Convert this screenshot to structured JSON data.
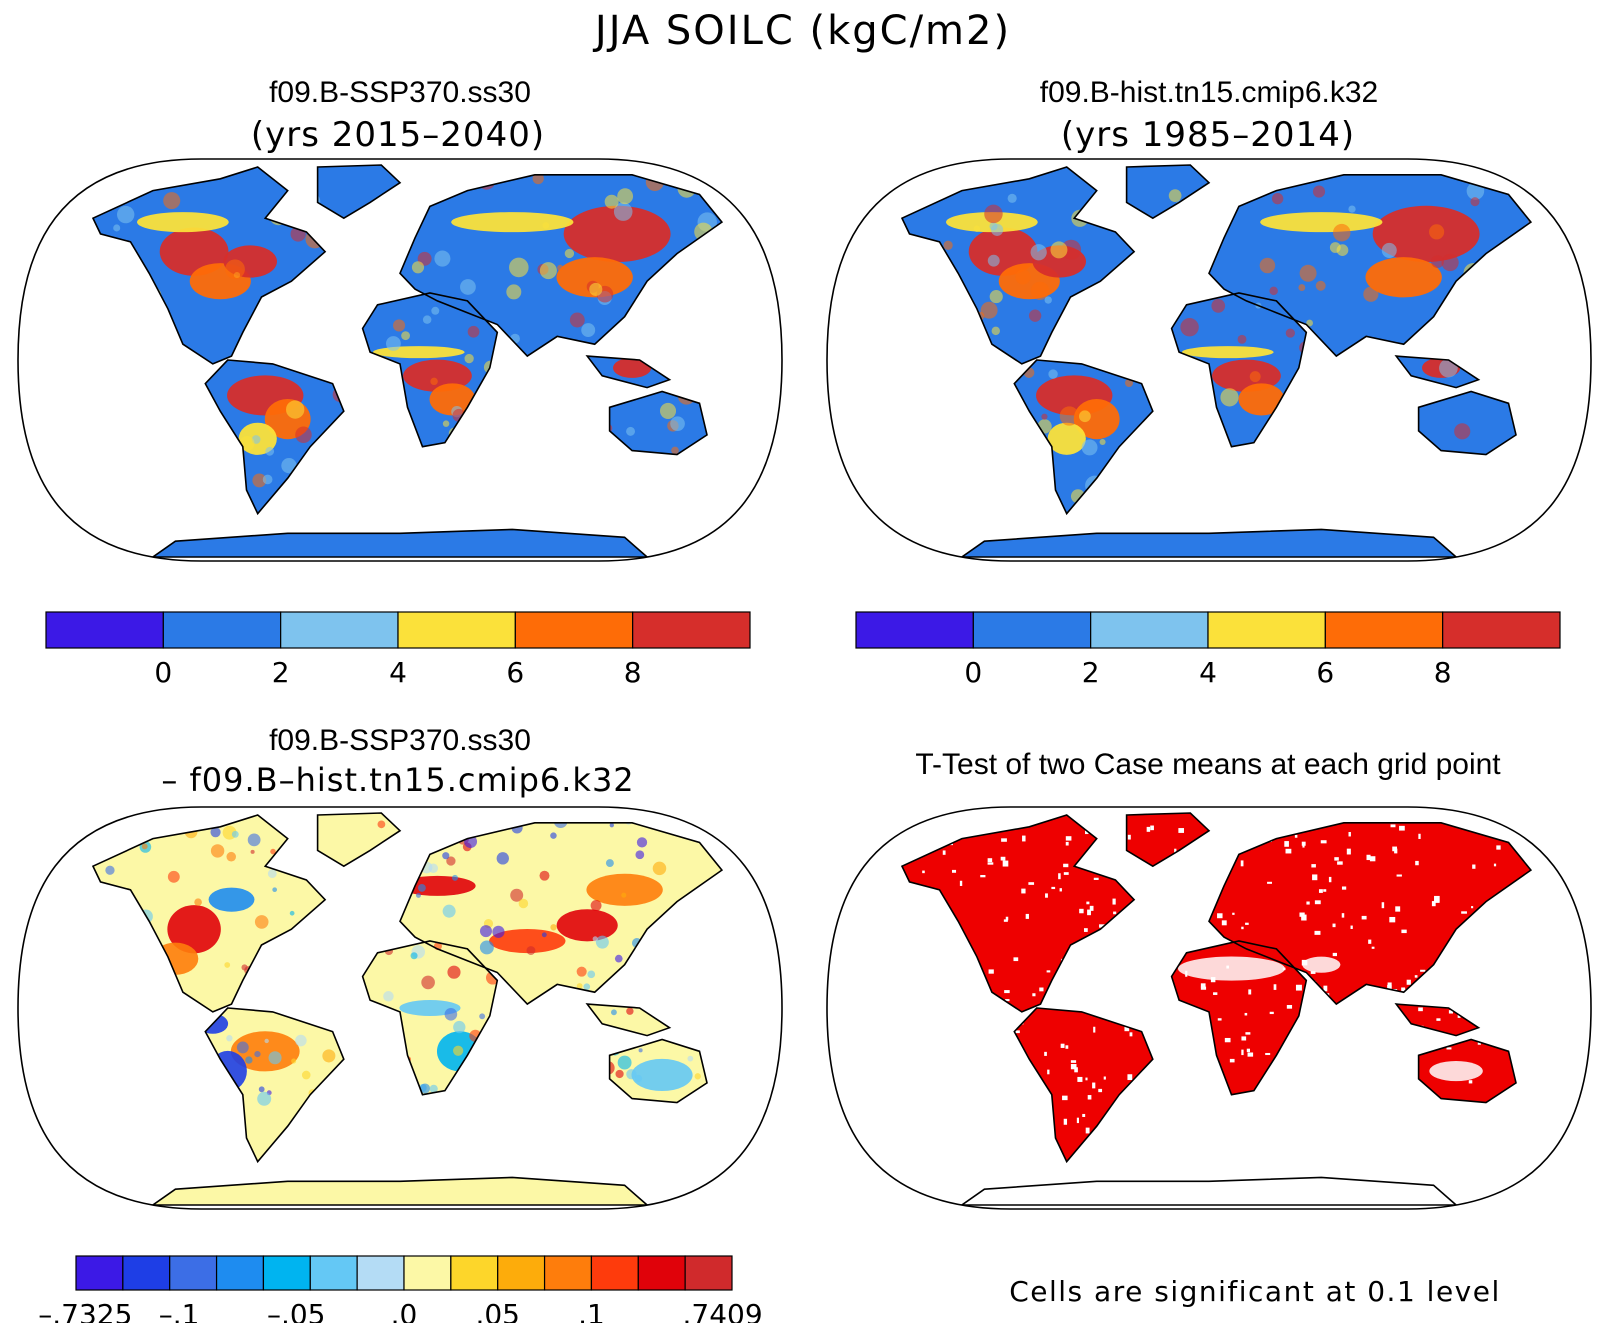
{
  "figure": {
    "title": "JJA SOILC (kgC/m2)"
  },
  "panels": [
    {
      "id": "case1",
      "title_line1": "f09.B-SSP370.ss30",
      "title_line2": "(yrs 2015–2040)",
      "colorbar": {
        "colors": [
          "#3c19e6",
          "#2b7ae6",
          "#7ec3ee",
          "#fbe13a",
          "#fe6c07",
          "#d62e2b"
        ],
        "tick_labels": [
          "0",
          "2",
          "4",
          "6",
          "8"
        ]
      }
    },
    {
      "id": "case2",
      "title_line1": "f09.B-hist.tn15.cmip6.k32",
      "title_line2": "(yrs 1985–2014)",
      "colorbar": {
        "colors": [
          "#3c19e6",
          "#2b7ae6",
          "#7ec3ee",
          "#fbe13a",
          "#fe6c07",
          "#d62e2b"
        ],
        "tick_labels": [
          "0",
          "2",
          "4",
          "6",
          "8"
        ]
      }
    },
    {
      "id": "diff",
      "title_line1": "f09.B-SSP370.ss30",
      "title_line2": "– f09.B–hist.tn15.cmip6.k32",
      "colorbar": {
        "colors": [
          "#3c19e6",
          "#1e3ee6",
          "#3c6ee6",
          "#1e8cf0",
          "#00b4f0",
          "#64c8f5",
          "#b4dcf5",
          "#fcf8a6",
          "#fdd62a",
          "#fdac0b",
          "#fe7d0c",
          "#fe3b0c",
          "#e0020a",
          "#d02a2c"
        ],
        "tick_labels": [
          "–.7325",
          "–.1",
          "–.05",
          ".0",
          ".05",
          ".1",
          ".7409"
        ]
      }
    },
    {
      "id": "ttest",
      "title_line1": "T-Test of two Case means at each grid point",
      "note": "Cells are significant at 0.1 level",
      "significant_color": "#ee0000"
    }
  ],
  "palette": {
    "coastline": "#000000",
    "ocean": "#ffffff",
    "diff_land_base": "#fcf8a6"
  }
}
